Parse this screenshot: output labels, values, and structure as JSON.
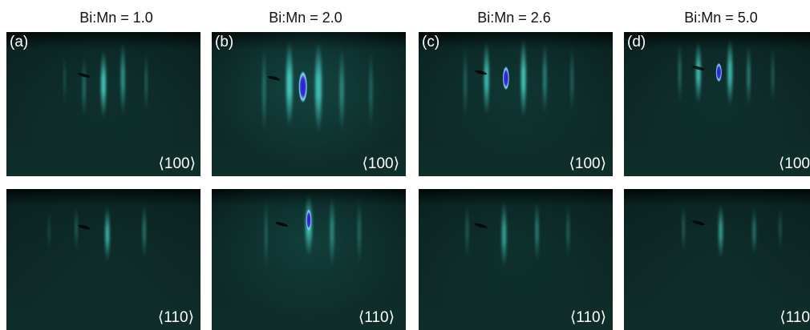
{
  "columns": [
    {
      "title": "Bi:Mn = 1.0",
      "letter": "(a)",
      "top_label": "⟨100⟩",
      "bottom_label": "⟨110⟩"
    },
    {
      "title": "Bi:Mn = 2.0",
      "letter": "(b)",
      "top_label": "⟨100⟩",
      "bottom_label": "⟨110⟩"
    },
    {
      "title": "Bi:Mn = 2.6",
      "letter": "(c)",
      "top_label": "⟨100⟩",
      "bottom_label": "⟨110⟩"
    },
    {
      "title": "Bi:Mn = 5.0",
      "letter": "(d)",
      "top_label": "⟨100",
      "bottom_label": "⟨110"
    }
  ],
  "colors": {
    "background": "#0c2623",
    "streak": "#4fe3d6",
    "spot_core": "#3a2fd6",
    "frame_top": "#020807"
  }
}
